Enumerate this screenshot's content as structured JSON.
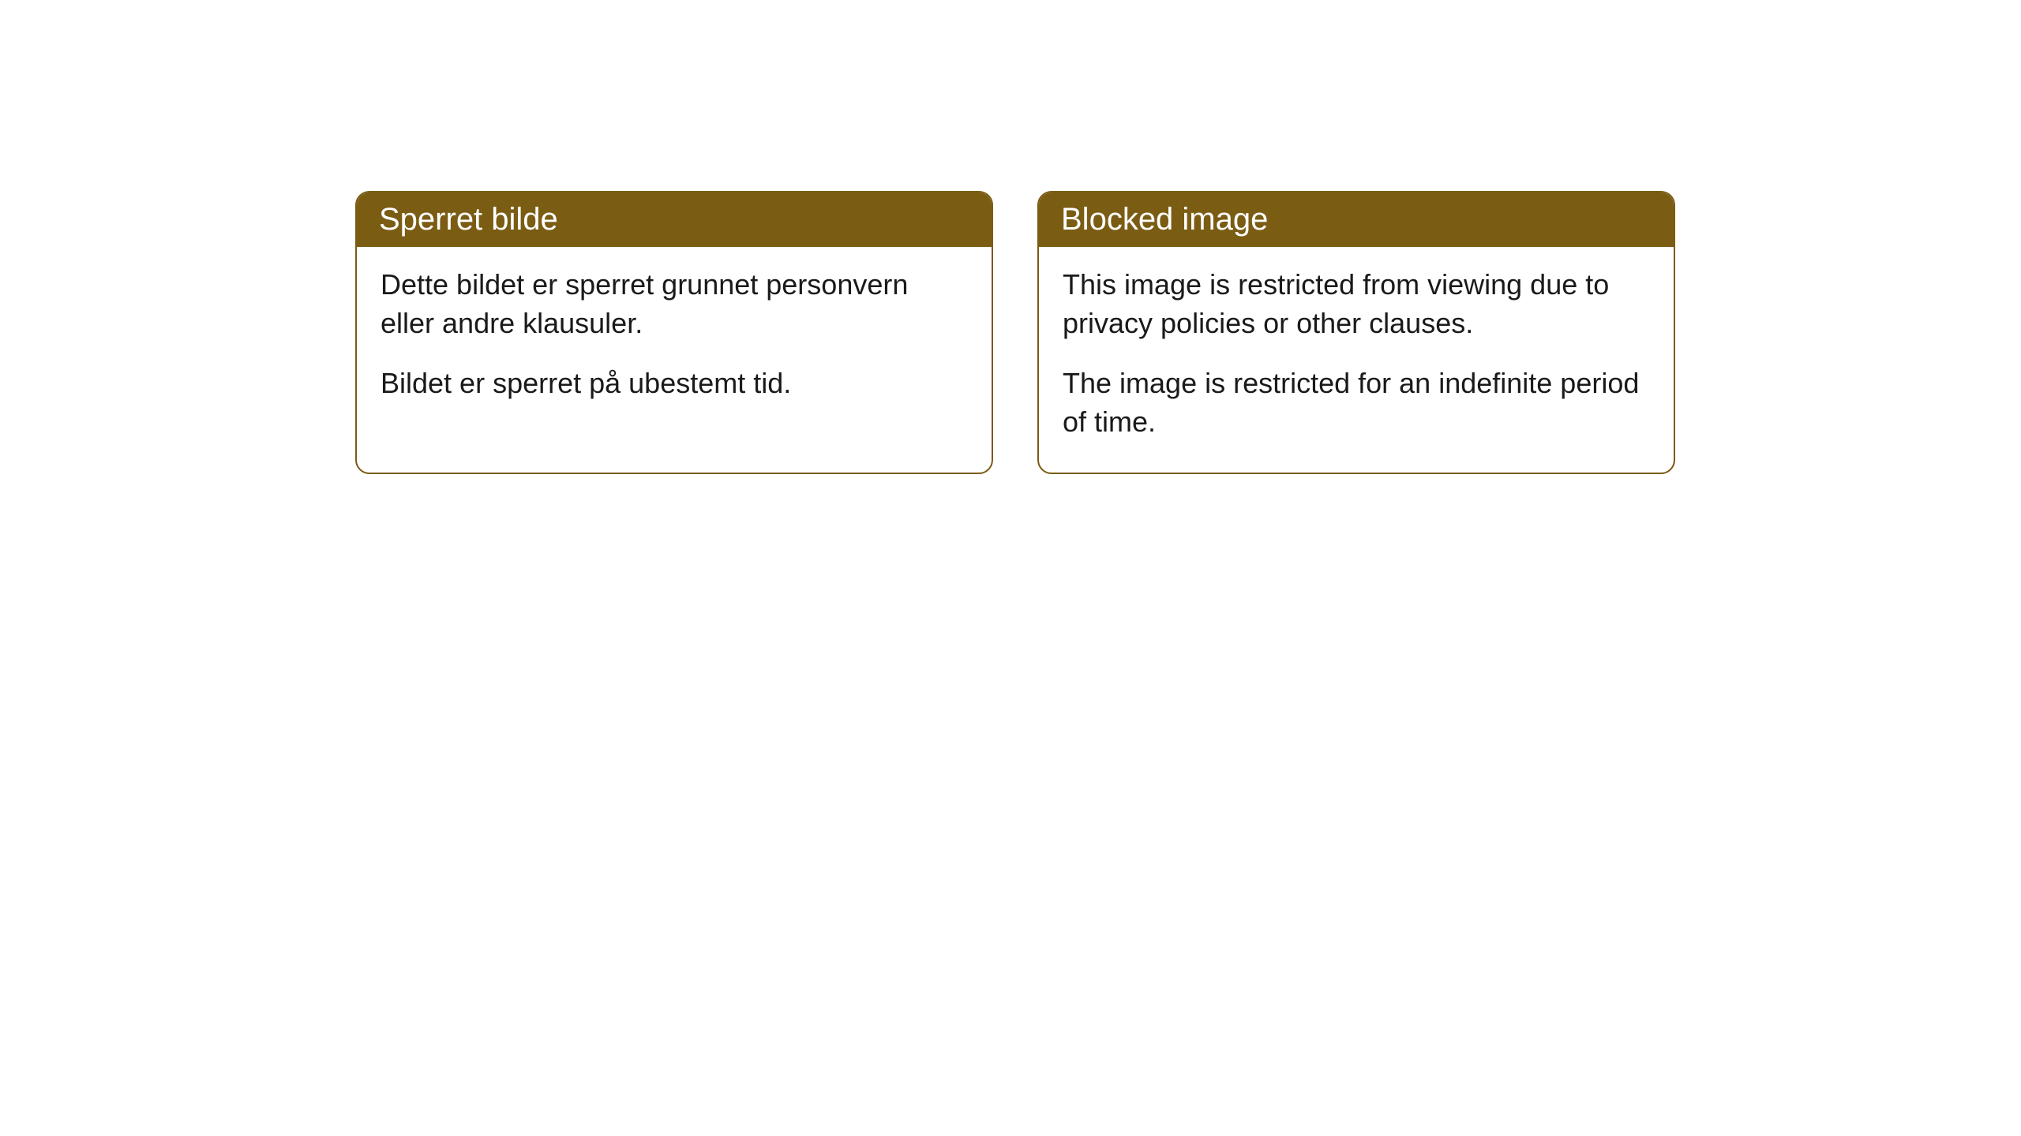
{
  "cards": [
    {
      "title": "Sperret bilde",
      "paragraph1": "Dette bildet er sperret grunnet personvern eller andre klausuler.",
      "paragraph2": "Bildet er sperret på ubestemt tid."
    },
    {
      "title": "Blocked image",
      "paragraph1": "This image is restricted from viewing due to privacy policies or other clauses.",
      "paragraph2": "The image is restricted for an indefinite period of time."
    }
  ],
  "styling": {
    "header_background": "#7a5c13",
    "header_text_color": "#ffffff",
    "border_color": "#7a5c13",
    "body_text_color": "#1a1a1a",
    "body_background": "#ffffff",
    "page_background": "#ffffff",
    "border_radius": 18,
    "header_fontsize": 40,
    "body_fontsize": 36
  }
}
